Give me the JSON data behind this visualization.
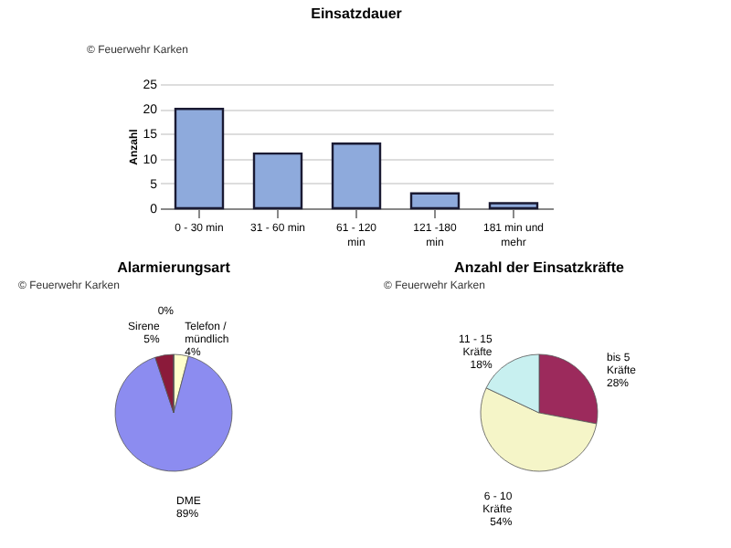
{
  "chart_data": [
    {
      "type": "bar",
      "title": "Einsatzdauer",
      "ylabel": "Anzahl",
      "annotations": [
        "© Feuerwehr Karken"
      ],
      "categories": [
        "0 - 30 min",
        "31 - 60 min",
        "61 - 120 min",
        "121 -180 min",
        "181 min und mehr"
      ],
      "values": [
        20,
        11,
        13,
        3,
        1
      ],
      "color": "#8eaadc",
      "ylim": [
        0,
        25
      ],
      "yticks": [
        0,
        5,
        10,
        15,
        20,
        25
      ],
      "grid": "y",
      "legend": false
    },
    {
      "type": "pie",
      "title": "Alarmierungsart",
      "annotations": [
        "© Feuerwehr Karken"
      ],
      "categories": [
        "Telefon / mündlich",
        "DME",
        "Sirene",
        null
      ],
      "values": [
        4,
        89,
        5,
        0
      ],
      "value_labels": [
        "4%",
        "89%",
        "5%",
        "0%"
      ],
      "colors": [
        "#ffffcc",
        "#8c8cf0",
        "#8b1a3a",
        "#c8f0f0"
      ],
      "legend": false
    },
    {
      "type": "pie",
      "title": "Anzahl der Einsatzkräfte",
      "annotations": [
        "© Feuerwehr Karken"
      ],
      "categories": [
        "bis 5 Kräfte",
        "6 - 10 Kräfte",
        "11 - 15 Kräfte"
      ],
      "values": [
        28,
        54,
        18
      ],
      "value_labels": [
        "28%",
        "54%",
        "18%"
      ],
      "colors": [
        "#9c2a5c",
        "#f5f5c8",
        "#c8f0f0"
      ],
      "legend": false
    }
  ]
}
